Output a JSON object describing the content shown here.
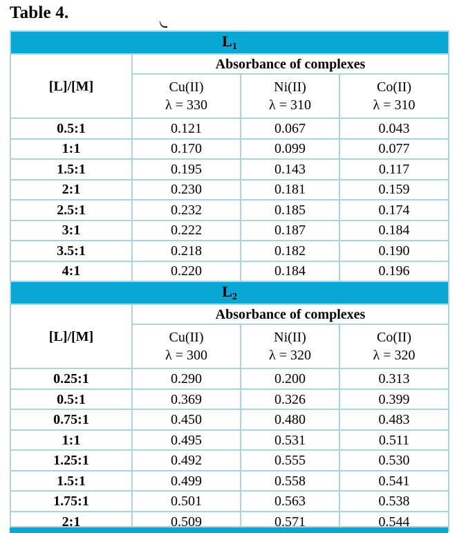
{
  "page": {
    "title": "Table 4."
  },
  "colors": {
    "band": "#09a7d3",
    "border": "#a9d4e0",
    "text": "#000000"
  },
  "table": {
    "sections": [
      {
        "band_label": "L",
        "band_sub": "1",
        "ratio_header": "[L]/[M]",
        "group_header": "Absorbance of complexes",
        "columns": [
          {
            "metal": "Cu(II)",
            "lambda": "λ = 330"
          },
          {
            "metal": "Ni(II)",
            "lambda": "λ = 310"
          },
          {
            "metal": "Co(II)",
            "lambda": "λ = 310"
          }
        ],
        "rows": [
          {
            "ratio": "0.5:1",
            "values": [
              "0.121",
              "0.067",
              "0.043"
            ]
          },
          {
            "ratio": "1:1",
            "values": [
              "0.170",
              "0.099",
              "0.077"
            ]
          },
          {
            "ratio": "1.5:1",
            "values": [
              "0.195",
              "0.143",
              "0.117"
            ]
          },
          {
            "ratio": "2:1",
            "values": [
              "0.230",
              "0.181",
              "0.159"
            ]
          },
          {
            "ratio": "2.5:1",
            "values": [
              "0.232",
              "0.185",
              "0.174"
            ]
          },
          {
            "ratio": "3:1",
            "values": [
              "0.222",
              "0.187",
              "0.184"
            ]
          },
          {
            "ratio": "3.5:1",
            "values": [
              "0.218",
              "0.182",
              "0.190"
            ]
          },
          {
            "ratio": "4:1",
            "values": [
              "0.220",
              "0.184",
              "0.196"
            ]
          }
        ]
      },
      {
        "band_label": "L",
        "band_sub": "2",
        "ratio_header": "[L]/[M]",
        "group_header": "Absorbance of complexes",
        "columns": [
          {
            "metal": "Cu(II)",
            "lambda": "λ = 300"
          },
          {
            "metal": "Ni(II)",
            "lambda": "λ = 320"
          },
          {
            "metal": "Co(II)",
            "lambda": "λ = 320"
          }
        ],
        "rows": [
          {
            "ratio": "0.25:1",
            "values": [
              "0.290",
              "0.200",
              "0.313"
            ]
          },
          {
            "ratio": "0.5:1",
            "values": [
              "0.369",
              "0.326",
              "0.399"
            ]
          },
          {
            "ratio": "0.75:1",
            "values": [
              "0.450",
              "0.480",
              "0.483"
            ]
          },
          {
            "ratio": "1:1",
            "values": [
              "0.495",
              "0.531",
              "0.511"
            ]
          },
          {
            "ratio": "1.25:1",
            "values": [
              "0.492",
              "0.555",
              "0.530"
            ]
          },
          {
            "ratio": "1.5:1",
            "values": [
              "0.499",
              "0.558",
              "0.541"
            ]
          },
          {
            "ratio": "1.75:1",
            "values": [
              "0.501",
              "0.563",
              "0.538"
            ]
          },
          {
            "ratio": "2:1",
            "values": [
              "0.509",
              "0.571",
              "0.544"
            ]
          }
        ]
      }
    ]
  }
}
